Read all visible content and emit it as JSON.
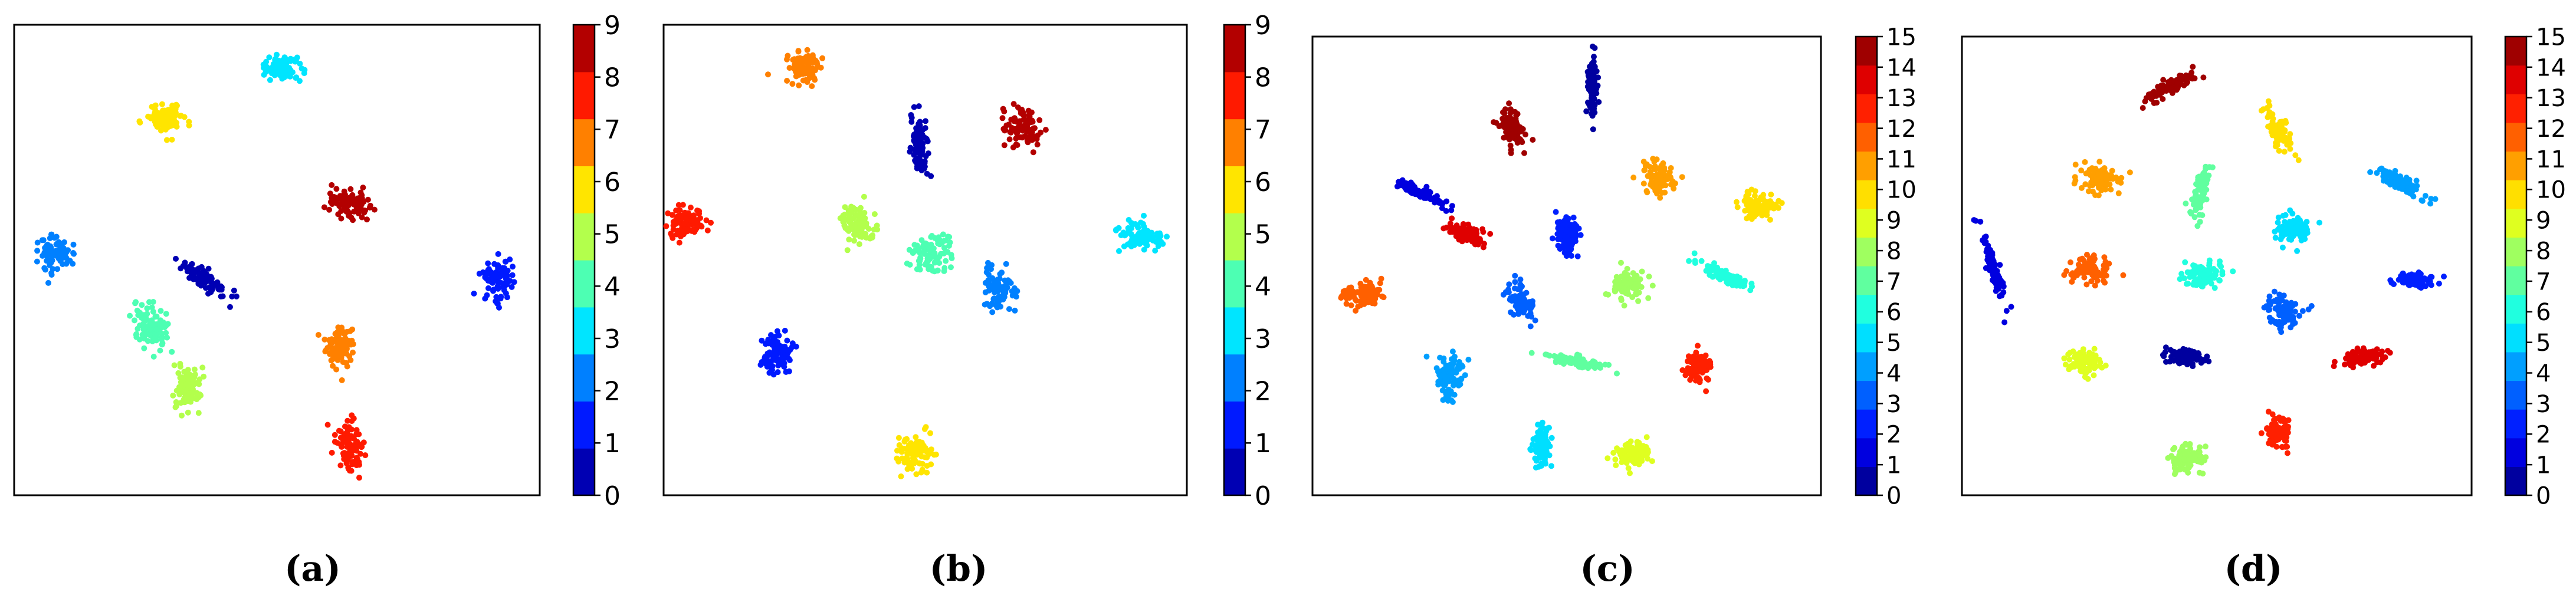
{
  "chart_data": [
    {
      "type": "scatter",
      "caption": "(a)",
      "colorbar": {
        "min": 0,
        "max": 9,
        "ticks": [
          "0",
          "1",
          "2",
          "3",
          "4",
          "5",
          "6",
          "7",
          "8",
          "9"
        ]
      },
      "clusters": [
        {
          "label": 0,
          "x": 0.36,
          "y": 0.46,
          "sx": 0.02,
          "sy": 0.055,
          "rot": 55
        },
        {
          "label": 1,
          "x": 0.92,
          "y": 0.46,
          "sx": 0.03,
          "sy": 0.038,
          "rot": -10
        },
        {
          "label": 2,
          "x": 0.08,
          "y": 0.51,
          "sx": 0.035,
          "sy": 0.035,
          "rot": 20
        },
        {
          "label": 3,
          "x": 0.51,
          "y": 0.91,
          "sx": 0.04,
          "sy": 0.024,
          "rot": -10
        },
        {
          "label": 4,
          "x": 0.26,
          "y": 0.36,
          "sx": 0.03,
          "sy": 0.052,
          "rot": 30
        },
        {
          "label": 5,
          "x": 0.33,
          "y": 0.23,
          "sx": 0.026,
          "sy": 0.05,
          "rot": 0
        },
        {
          "label": 6,
          "x": 0.29,
          "y": 0.8,
          "sx": 0.04,
          "sy": 0.03,
          "rot": 0
        },
        {
          "label": 7,
          "x": 0.62,
          "y": 0.32,
          "sx": 0.028,
          "sy": 0.045,
          "rot": 0
        },
        {
          "label": 8,
          "x": 0.64,
          "y": 0.11,
          "sx": 0.024,
          "sy": 0.06,
          "rot": 10
        },
        {
          "label": 9,
          "x": 0.64,
          "y": 0.62,
          "sx": 0.038,
          "sy": 0.03,
          "rot": -20
        }
      ]
    },
    {
      "type": "scatter",
      "caption": "(b)",
      "colorbar": {
        "min": 0,
        "max": 9,
        "ticks": [
          "0",
          "1",
          "2",
          "3",
          "4",
          "5",
          "6",
          "7",
          "8",
          "9"
        ]
      },
      "clusters": [
        {
          "label": 0,
          "x": 0.49,
          "y": 0.74,
          "sx": 0.017,
          "sy": 0.065,
          "rot": 5
        },
        {
          "label": 1,
          "x": 0.22,
          "y": 0.3,
          "sx": 0.028,
          "sy": 0.048,
          "rot": 0
        },
        {
          "label": 2,
          "x": 0.64,
          "y": 0.44,
          "sx": 0.028,
          "sy": 0.05,
          "rot": 10
        },
        {
          "label": 3,
          "x": 0.91,
          "y": 0.55,
          "sx": 0.042,
          "sy": 0.028,
          "rot": -10
        },
        {
          "label": 4,
          "x": 0.51,
          "y": 0.51,
          "sx": 0.042,
          "sy": 0.045,
          "rot": -10
        },
        {
          "label": 5,
          "x": 0.37,
          "y": 0.58,
          "sx": 0.032,
          "sy": 0.042,
          "rot": 30
        },
        {
          "label": 6,
          "x": 0.48,
          "y": 0.09,
          "sx": 0.032,
          "sy": 0.034,
          "rot": 0
        },
        {
          "label": 7,
          "x": 0.27,
          "y": 0.91,
          "sx": 0.032,
          "sy": 0.034,
          "rot": 0
        },
        {
          "label": 8,
          "x": 0.04,
          "y": 0.58,
          "sx": 0.04,
          "sy": 0.03,
          "rot": 0
        },
        {
          "label": 9,
          "x": 0.68,
          "y": 0.78,
          "sx": 0.038,
          "sy": 0.038,
          "rot": -30
        }
      ]
    },
    {
      "type": "scatter",
      "caption": "(c)",
      "colorbar": {
        "min": 0,
        "max": 15,
        "ticks": [
          "0",
          "1",
          "2",
          "3",
          "4",
          "5",
          "6",
          "7",
          "8",
          "9",
          "10",
          "11",
          "12",
          "13",
          "14",
          "15"
        ]
      },
      "clusters": [
        {
          "label": 0,
          "x": 0.55,
          "y": 0.89,
          "sx": 0.009,
          "sy": 0.065,
          "rot": 0
        },
        {
          "label": 1,
          "x": 0.21,
          "y": 0.66,
          "sx": 0.05,
          "sy": 0.012,
          "rot": -30
        },
        {
          "label": 2,
          "x": 0.5,
          "y": 0.57,
          "sx": 0.025,
          "sy": 0.048,
          "rot": 10
        },
        {
          "label": 3,
          "x": 0.41,
          "y": 0.42,
          "sx": 0.025,
          "sy": 0.048,
          "rot": 20
        },
        {
          "label": 4,
          "x": 0.27,
          "y": 0.26,
          "sx": 0.028,
          "sy": 0.048,
          "rot": 0
        },
        {
          "label": 5,
          "x": 0.45,
          "y": 0.11,
          "sx": 0.02,
          "sy": 0.045,
          "rot": 0
        },
        {
          "label": 6,
          "x": 0.81,
          "y": 0.48,
          "sx": 0.06,
          "sy": 0.012,
          "rot": -30
        },
        {
          "label": 7,
          "x": 0.52,
          "y": 0.29,
          "sx": 0.07,
          "sy": 0.012,
          "rot": -12
        },
        {
          "label": 8,
          "x": 0.62,
          "y": 0.46,
          "sx": 0.036,
          "sy": 0.032,
          "rot": 0
        },
        {
          "label": 9,
          "x": 0.63,
          "y": 0.09,
          "sx": 0.038,
          "sy": 0.03,
          "rot": 0
        },
        {
          "label": 10,
          "x": 0.88,
          "y": 0.63,
          "sx": 0.042,
          "sy": 0.026,
          "rot": -20
        },
        {
          "label": 11,
          "x": 0.68,
          "y": 0.69,
          "sx": 0.028,
          "sy": 0.04,
          "rot": 10
        },
        {
          "label": 12,
          "x": 0.1,
          "y": 0.44,
          "sx": 0.044,
          "sy": 0.026,
          "rot": 0
        },
        {
          "label": 13,
          "x": 0.76,
          "y": 0.28,
          "sx": 0.028,
          "sy": 0.032,
          "rot": 0
        },
        {
          "label": 14,
          "x": 0.3,
          "y": 0.57,
          "sx": 0.04,
          "sy": 0.02,
          "rot": -20
        },
        {
          "label": 15,
          "x": 0.39,
          "y": 0.8,
          "sx": 0.028,
          "sy": 0.042,
          "rot": 10
        }
      ]
    },
    {
      "type": "scatter",
      "caption": "(d)",
      "colorbar": {
        "min": 0,
        "max": 15,
        "ticks": [
          "0",
          "1",
          "2",
          "3",
          "4",
          "5",
          "6",
          "7",
          "8",
          "9",
          "10",
          "11",
          "12",
          "13",
          "14",
          "15"
        ]
      },
      "clusters": [
        {
          "label": 0,
          "x": 0.44,
          "y": 0.3,
          "sx": 0.04,
          "sy": 0.018,
          "rot": 0
        },
        {
          "label": 1,
          "x": 0.06,
          "y": 0.5,
          "sx": 0.01,
          "sy": 0.08,
          "rot": 15
        },
        {
          "label": 2,
          "x": 0.89,
          "y": 0.47,
          "sx": 0.038,
          "sy": 0.016,
          "rot": 0
        },
        {
          "label": 3,
          "x": 0.63,
          "y": 0.4,
          "sx": 0.032,
          "sy": 0.036,
          "rot": 20
        },
        {
          "label": 4,
          "x": 0.86,
          "y": 0.68,
          "sx": 0.06,
          "sy": 0.016,
          "rot": -35
        },
        {
          "label": 5,
          "x": 0.65,
          "y": 0.58,
          "sx": 0.034,
          "sy": 0.03,
          "rot": 0
        },
        {
          "label": 6,
          "x": 0.47,
          "y": 0.48,
          "sx": 0.04,
          "sy": 0.03,
          "rot": 0
        },
        {
          "label": 7,
          "x": 0.47,
          "y": 0.66,
          "sx": 0.014,
          "sy": 0.06,
          "rot": -10
        },
        {
          "label": 8,
          "x": 0.44,
          "y": 0.08,
          "sx": 0.034,
          "sy": 0.034,
          "rot": 0
        },
        {
          "label": 9,
          "x": 0.24,
          "y": 0.29,
          "sx": 0.036,
          "sy": 0.03,
          "rot": 0
        },
        {
          "label": 10,
          "x": 0.62,
          "y": 0.8,
          "sx": 0.02,
          "sy": 0.05,
          "rot": 30
        },
        {
          "label": 11,
          "x": 0.27,
          "y": 0.69,
          "sx": 0.042,
          "sy": 0.03,
          "rot": -20
        },
        {
          "label": 12,
          "x": 0.25,
          "y": 0.49,
          "sx": 0.04,
          "sy": 0.028,
          "rot": 0
        },
        {
          "label": 13,
          "x": 0.62,
          "y": 0.14,
          "sx": 0.024,
          "sy": 0.034,
          "rot": 0
        },
        {
          "label": 14,
          "x": 0.79,
          "y": 0.3,
          "sx": 0.046,
          "sy": 0.016,
          "rot": 10
        },
        {
          "label": 15,
          "x": 0.41,
          "y": 0.89,
          "sx": 0.07,
          "sy": 0.016,
          "rot": 30
        }
      ]
    }
  ]
}
